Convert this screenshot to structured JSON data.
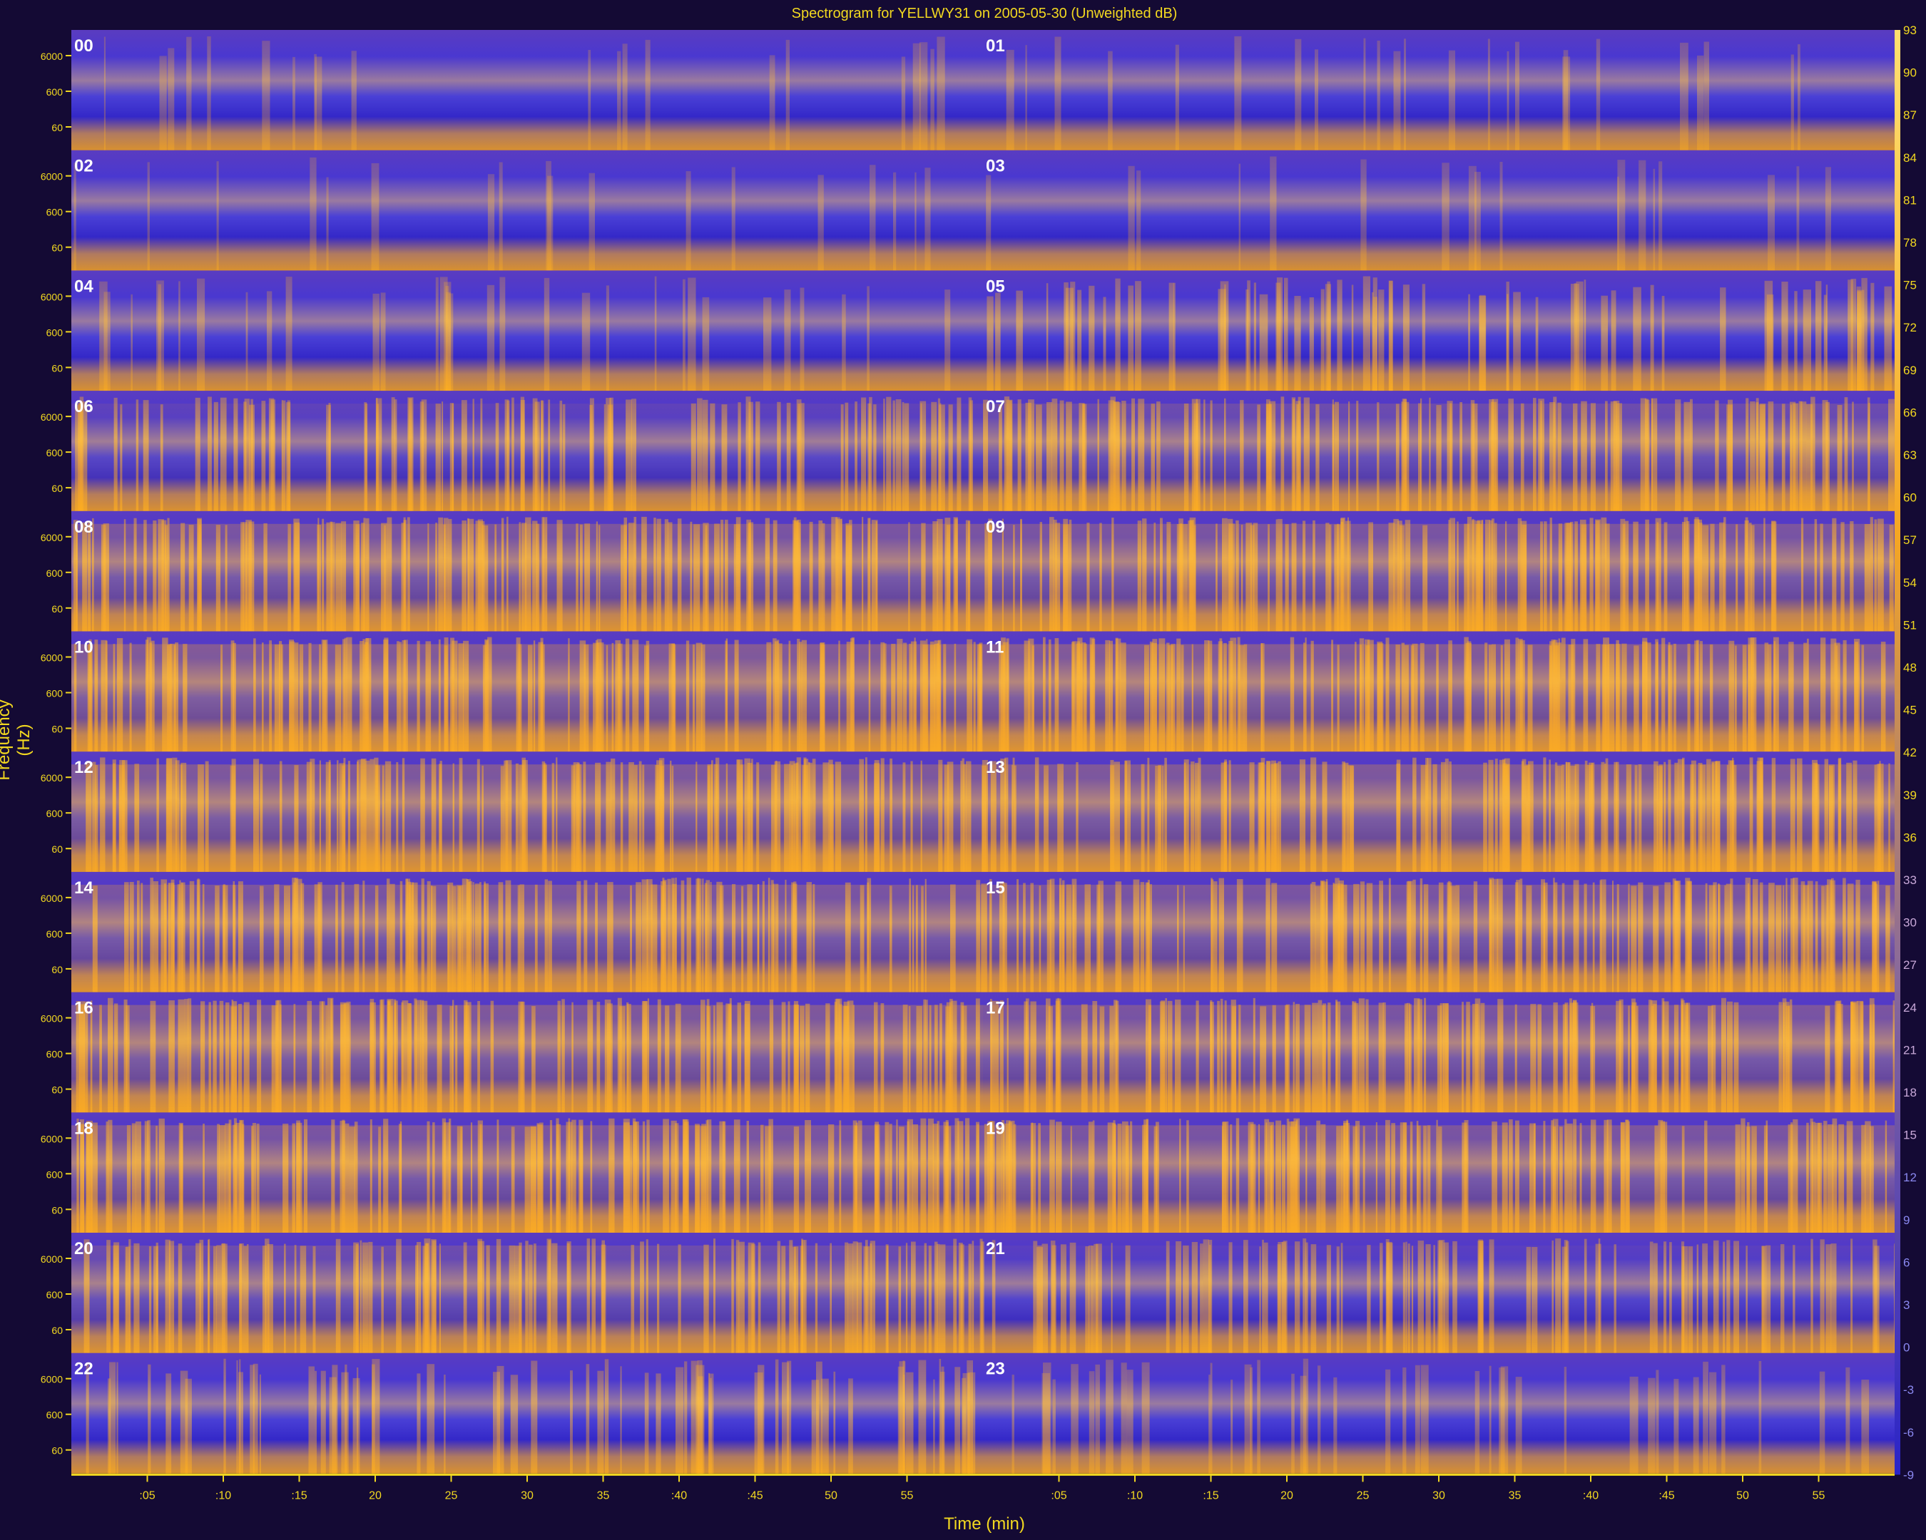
{
  "chart_data": {
    "type": "heatmap",
    "title": "Spectrogram for YELLWY31 on 2005-05-30 (Unweighted dB)",
    "xlabel": "Time (min)",
    "ylabel": "Frequency (Hz)",
    "hours": [
      "00",
      "01",
      "02",
      "03",
      "04",
      "05",
      "06",
      "07",
      "08",
      "09",
      "10",
      "11",
      "12",
      "13",
      "14",
      "15",
      "16",
      "17",
      "18",
      "19",
      "20",
      "21",
      "22",
      "23"
    ],
    "frequency_ticks": [
      "6000",
      "600",
      "60"
    ],
    "time_ticks": [
      ":05",
      ":10",
      ":15",
      "20",
      "25",
      "30",
      "35",
      ":40",
      ":45",
      "50",
      "55",
      ":05",
      ":10",
      ":15",
      "20",
      "25",
      "30",
      "35",
      ":40",
      ":45",
      "50",
      "55"
    ],
    "colorbar_ticks": [
      "93",
      "90",
      "87",
      "84",
      "81",
      "78",
      "75",
      "72",
      "69",
      "66",
      "63",
      "60",
      "57",
      "54",
      "51",
      "48",
      "45",
      "42",
      "39",
      "36",
      "33",
      "30",
      "27",
      "24",
      "21",
      "18",
      "15",
      "12",
      "9",
      "6",
      "3",
      "0",
      "-3",
      "-6",
      "-9"
    ],
    "activity_by_hour": [
      0.1,
      0.12,
      0.08,
      0.08,
      0.18,
      0.45,
      0.65,
      0.75,
      0.85,
      0.85,
      0.9,
      0.9,
      0.88,
      0.88,
      0.85,
      0.85,
      0.88,
      0.85,
      0.85,
      0.85,
      0.75,
      0.62,
      0.45,
      0.25
    ],
    "colors": {
      "low": "#3a32c8",
      "mid": "#8a6a9a",
      "high": "#f5a623",
      "peak": "#ffd860",
      "text": "#f2d820",
      "background": "#140a34"
    }
  }
}
